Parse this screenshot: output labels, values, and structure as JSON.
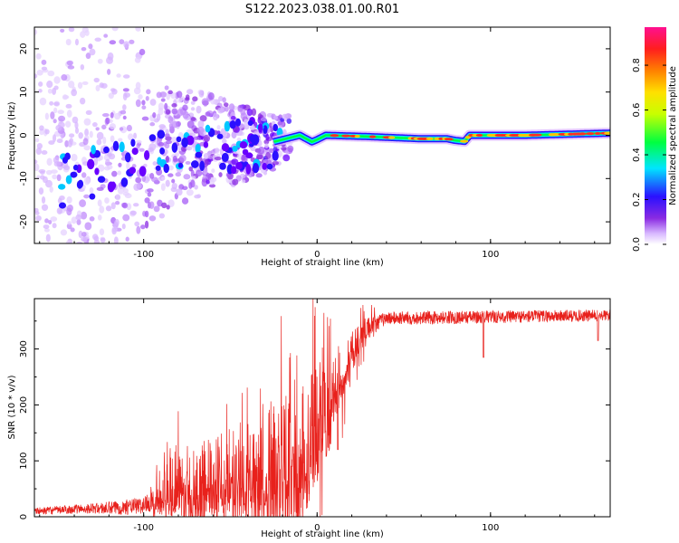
{
  "page_title": "S122.2023.038.01.00.R01",
  "colors": {
    "snr_line": "#e8211c",
    "axes": "#000000",
    "speckle": "#9b3cf5"
  },
  "chart_data": [
    {
      "type": "heatmap",
      "title": "S122.2023.038.01.00.R01",
      "xlabel": "Height of straight line (km)",
      "ylabel": "Frequency (Hz)",
      "xlim": [
        -163,
        169
      ],
      "ylim": [
        -25,
        25
      ],
      "xticks": [
        -100,
        0,
        100
      ],
      "yticks": [
        -20,
        -10,
        0,
        10,
        20
      ],
      "colorbar": {
        "label": "Normalized spectral amplitude",
        "range": [
          0,
          0.97
        ],
        "ticks": [
          "0.0",
          "0.2",
          "0.4",
          "0.6",
          "0.8"
        ],
        "colormap": "rainbow (violet to magenta)"
      },
      "ridge": [
        {
          "x": -150,
          "y": -11
        },
        {
          "x": -130,
          "y": -9
        },
        {
          "x": -110,
          "y": -6
        },
        {
          "x": -90,
          "y": -4
        },
        {
          "x": -70,
          "y": -2
        },
        {
          "x": -50,
          "y": -2
        },
        {
          "x": -30,
          "y": -2
        },
        {
          "x": -20,
          "y": -1
        },
        {
          "x": -10,
          "y": 0
        },
        {
          "x": -3,
          "y": -1.5
        },
        {
          "x": 0,
          "y": -1
        },
        {
          "x": 5,
          "y": 0
        },
        {
          "x": 30,
          "y": -0.3
        },
        {
          "x": 60,
          "y": -0.8
        },
        {
          "x": 75,
          "y": -0.8
        },
        {
          "x": 80,
          "y": -1.2
        },
        {
          "x": 85,
          "y": -1.4
        },
        {
          "x": 88,
          "y": 0
        },
        {
          "x": 120,
          "y": 0
        },
        {
          "x": 169,
          "y": 0.5
        }
      ]
    },
    {
      "type": "line",
      "xlabel": "Height of straight line (km)",
      "ylabel": "SNR (10 * v/v)",
      "xlim": [
        -163,
        169
      ],
      "ylim": [
        0,
        390
      ],
      "xticks": [
        -100,
        0,
        100
      ],
      "yticks": [
        0,
        100,
        200,
        300
      ],
      "envelope": [
        {
          "x": -163,
          "base": 10,
          "spread": 10
        },
        {
          "x": -130,
          "base": 15,
          "spread": 15
        },
        {
          "x": -120,
          "base": 15,
          "spread": 20
        },
        {
          "x": -100,
          "base": 20,
          "spread": 25
        },
        {
          "x": -90,
          "base": 50,
          "spread": 60
        },
        {
          "x": -80,
          "base": 60,
          "spread": 90
        },
        {
          "x": -60,
          "base": 70,
          "spread": 100
        },
        {
          "x": -40,
          "base": 90,
          "spread": 130
        },
        {
          "x": -20,
          "base": 100,
          "spread": 170
        },
        {
          "x": -10,
          "base": 130,
          "spread": 200
        },
        {
          "x": 0,
          "base": 170,
          "spread": 160
        },
        {
          "x": 10,
          "base": 230,
          "spread": 100
        },
        {
          "x": 20,
          "base": 300,
          "spread": 50
        },
        {
          "x": 30,
          "base": 340,
          "spread": 25
        },
        {
          "x": 40,
          "base": 355,
          "spread": 20
        },
        {
          "x": 169,
          "base": 360,
          "spread": 18
        }
      ],
      "dips": [
        {
          "x": -14,
          "y": 125
        },
        {
          "x": 12,
          "y": 120
        },
        {
          "x": 96,
          "y": 285
        },
        {
          "x": 162,
          "y": 315
        }
      ]
    }
  ]
}
